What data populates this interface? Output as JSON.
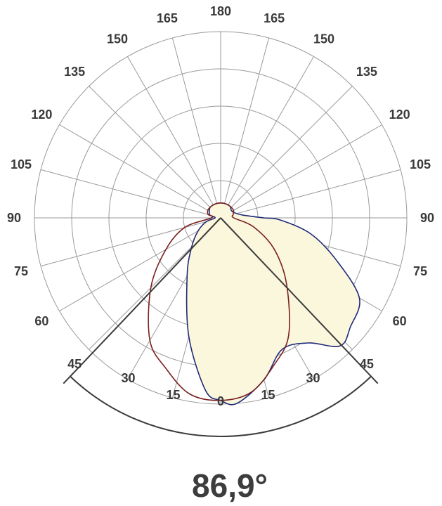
{
  "chart_data": {
    "type": "polar",
    "title": "",
    "angle_tick_labels": [
      {
        "angle": 0,
        "label": "0"
      },
      {
        "angle": 15,
        "label": "15"
      },
      {
        "angle": -15,
        "label": "15"
      },
      {
        "angle": 30,
        "label": "30"
      },
      {
        "angle": -30,
        "label": "30"
      },
      {
        "angle": 45,
        "label": "45"
      },
      {
        "angle": -45,
        "label": "45"
      },
      {
        "angle": 60,
        "label": "60"
      },
      {
        "angle": -60,
        "label": "60"
      },
      {
        "angle": 75,
        "label": "75"
      },
      {
        "angle": -75,
        "label": "75"
      },
      {
        "angle": 90,
        "label": "90"
      },
      {
        "angle": -90,
        "label": "90"
      },
      {
        "angle": 105,
        "label": "105"
      },
      {
        "angle": -105,
        "label": "105"
      },
      {
        "angle": 120,
        "label": "120"
      },
      {
        "angle": -120,
        "label": "120"
      },
      {
        "angle": 135,
        "label": "135"
      },
      {
        "angle": -135,
        "label": "135"
      },
      {
        "angle": 150,
        "label": "150"
      },
      {
        "angle": -150,
        "label": "150"
      },
      {
        "angle": 165,
        "label": "165"
      },
      {
        "angle": -165,
        "label": "165"
      },
      {
        "angle": 180,
        "label": "180"
      }
    ],
    "grid": true,
    "radial_grid_levels": 5,
    "beam_angle": {
      "half_angle_left": -43.5,
      "half_angle_right": 43.5,
      "label": "86,9°"
    },
    "series": [
      {
        "color": "#1e2a78",
        "fill": "#fbf7dc",
        "points": [
          [
            -180,
            0.08
          ],
          [
            -165,
            0.08
          ],
          [
            -150,
            0.08
          ],
          [
            -135,
            0.08
          ],
          [
            -120,
            0.07
          ],
          [
            -105,
            0.06
          ],
          [
            -90,
            0.03
          ],
          [
            -75,
            0.08
          ],
          [
            -60,
            0.14
          ],
          [
            -45,
            0.22
          ],
          [
            -30,
            0.36
          ],
          [
            -15,
            0.66
          ],
          [
            -5,
            0.93
          ],
          [
            0,
            0.98
          ],
          [
            5,
            1.0
          ],
          [
            15,
            0.9
          ],
          [
            25,
            0.78
          ],
          [
            35,
            0.82
          ],
          [
            43,
            0.94
          ],
          [
            50,
            0.91
          ],
          [
            60,
            0.86
          ],
          [
            70,
            0.66
          ],
          [
            80,
            0.49
          ],
          [
            88,
            0.32
          ],
          [
            90,
            0.23
          ],
          [
            97,
            0.12
          ],
          [
            110,
            0.08
          ],
          [
            125,
            0.07
          ],
          [
            140,
            0.08
          ],
          [
            155,
            0.08
          ],
          [
            170,
            0.08
          ]
        ]
      },
      {
        "color": "#7a1f1f",
        "fill": "none",
        "points": [
          [
            -180,
            0.08
          ],
          [
            -165,
            0.08
          ],
          [
            -150,
            0.08
          ],
          [
            -135,
            0.08
          ],
          [
            -120,
            0.08
          ],
          [
            -105,
            0.07
          ],
          [
            -90,
            0.05
          ],
          [
            -75,
            0.2
          ],
          [
            -60,
            0.34
          ],
          [
            -45,
            0.53
          ],
          [
            -30,
            0.76
          ],
          [
            -20,
            0.86
          ],
          [
            -10,
            0.96
          ],
          [
            0,
            0.98
          ],
          [
            10,
            0.95
          ],
          [
            20,
            0.84
          ],
          [
            30,
            0.73
          ],
          [
            45,
            0.5
          ],
          [
            60,
            0.33
          ],
          [
            75,
            0.18
          ],
          [
            90,
            0.07
          ],
          [
            105,
            0.07
          ],
          [
            120,
            0.08
          ],
          [
            135,
            0.08
          ],
          [
            150,
            0.08
          ],
          [
            165,
            0.08
          ]
        ]
      }
    ]
  }
}
